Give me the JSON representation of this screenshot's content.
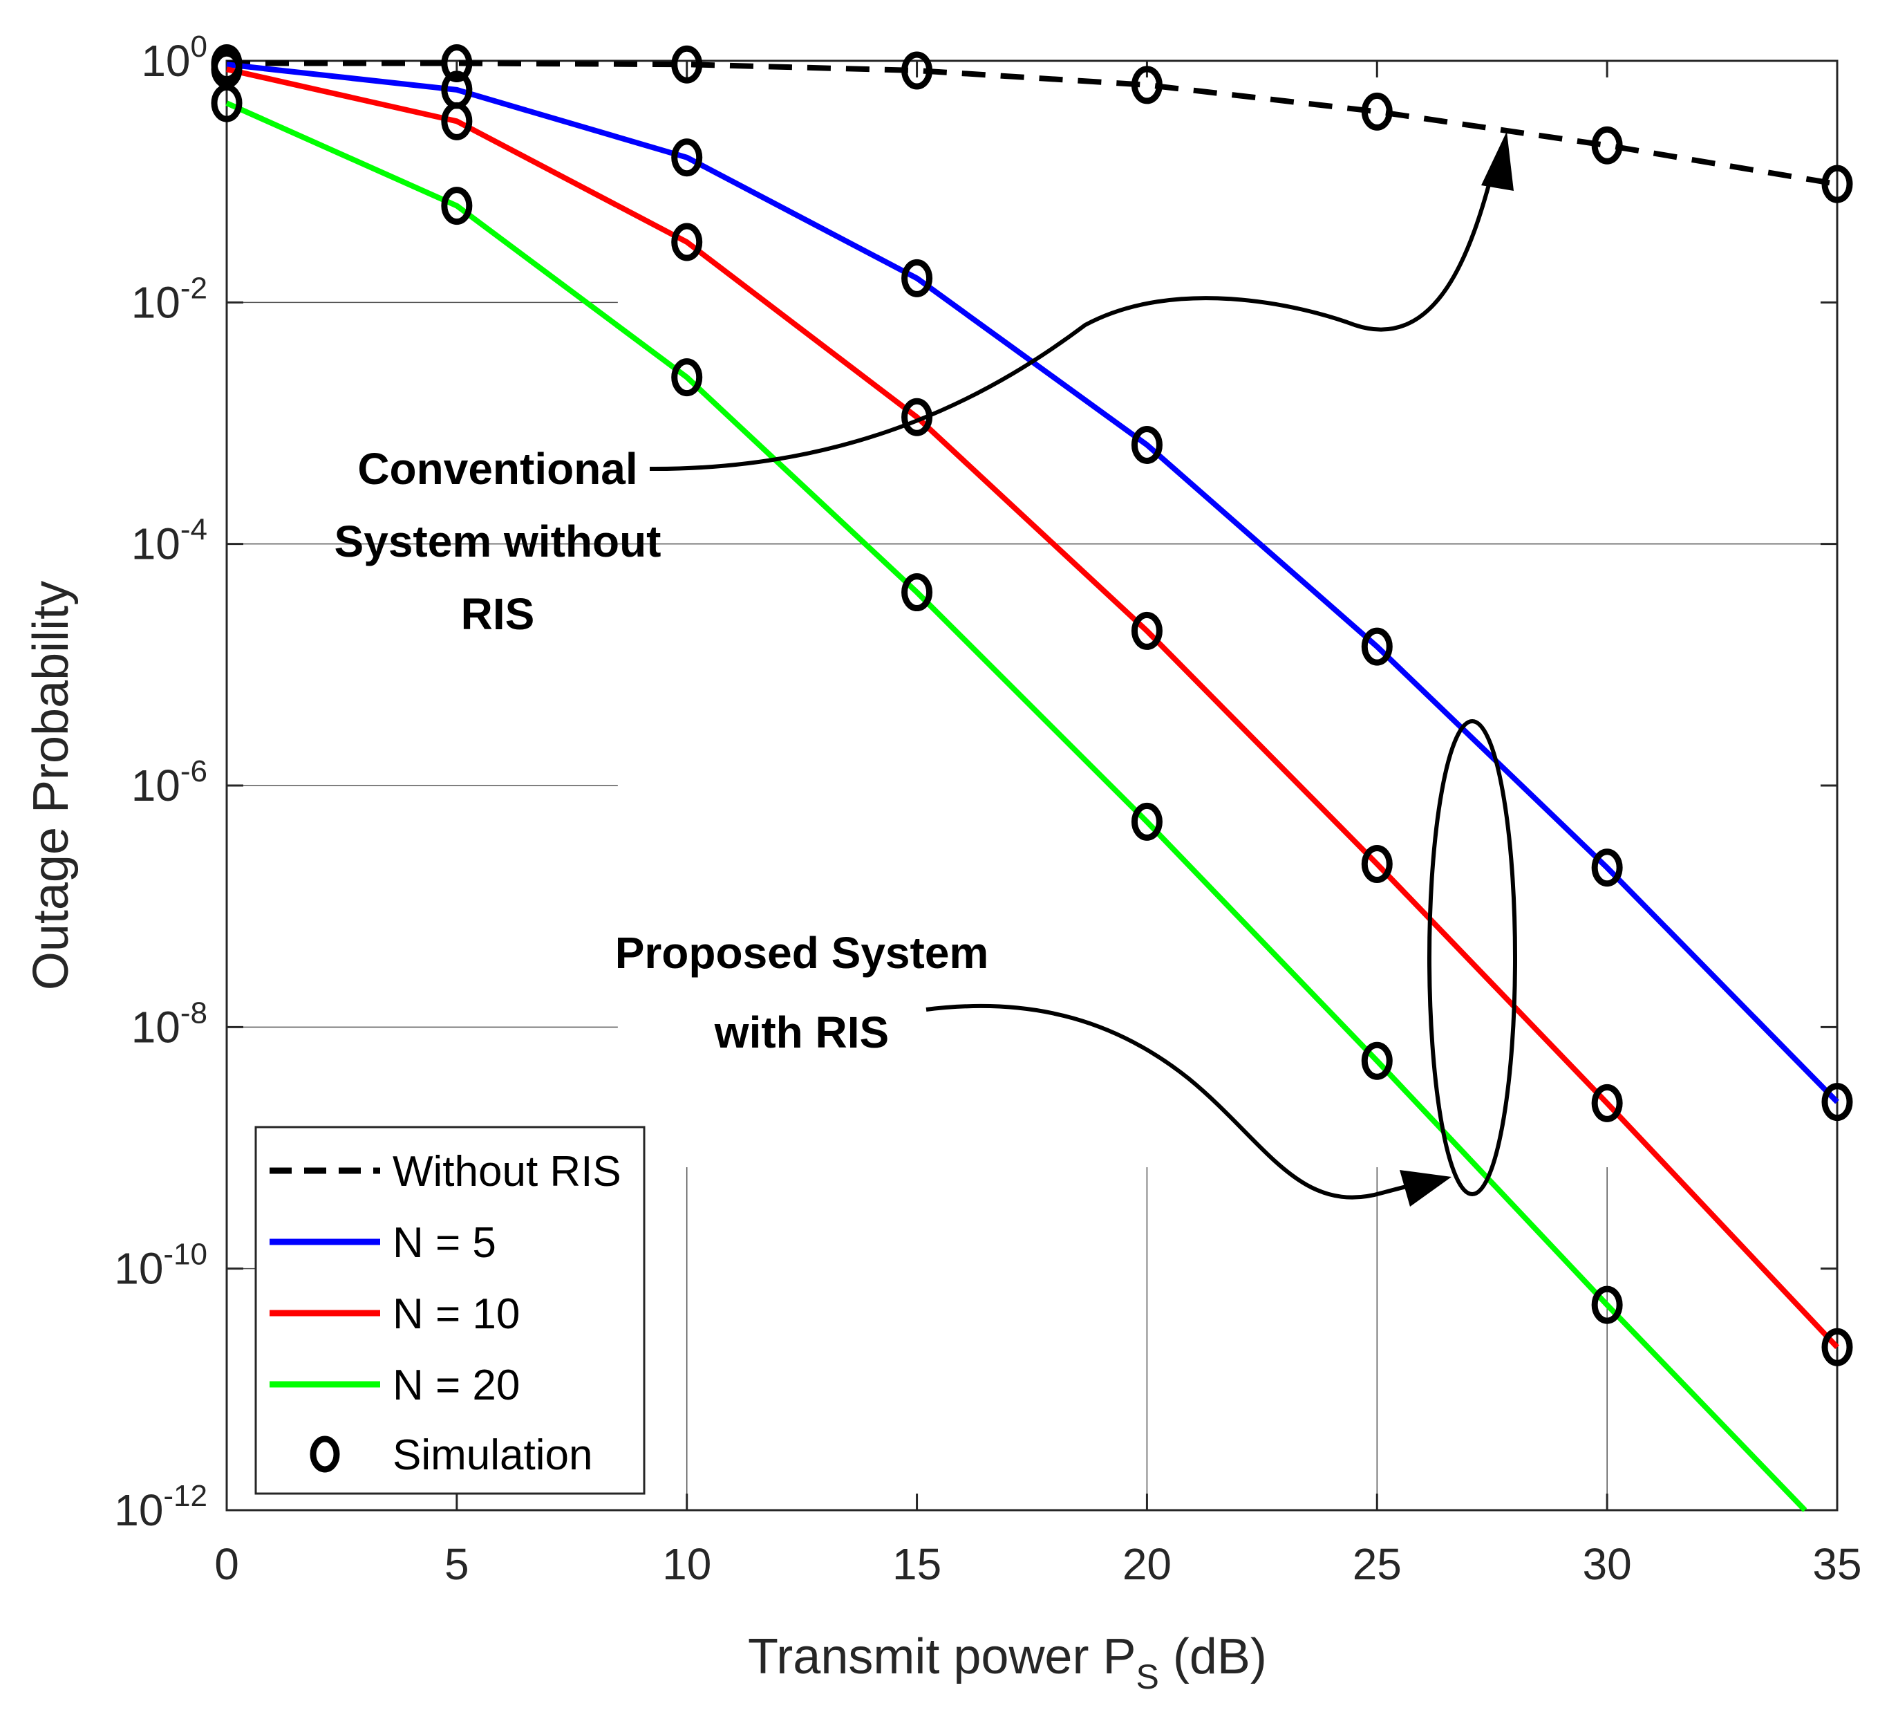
{
  "chart_data": {
    "type": "line",
    "yscale": "log",
    "title": "",
    "xlabel_main": "Transmit power P",
    "xlabel_sub": "S",
    "xlabel_unit": " (dB)",
    "ylabel": "Outage Probability",
    "xlim": [
      0,
      35
    ],
    "ylim_exponents": [
      -12,
      0
    ],
    "x_ticks": [
      "0",
      "5",
      "10",
      "15",
      "20",
      "25",
      "30",
      "35"
    ],
    "x_tick_values": [
      0,
      5,
      10,
      15,
      20,
      25,
      30,
      35
    ],
    "y_tick_exponents": [
      0,
      -2,
      -4,
      -6,
      -8,
      -10,
      -12
    ],
    "y_tick_base": "10",
    "y_tick_powers": [
      "0",
      "-2",
      "-4",
      "-6",
      "-8",
      "-10",
      "-12"
    ],
    "series": [
      {
        "name": "Without RIS",
        "color": "#000000",
        "dash": true,
        "x": [
          0,
          5,
          10,
          15,
          20,
          25,
          30,
          35
        ],
        "log10_y": [
          -0.02,
          -0.02,
          -0.03,
          -0.08,
          -0.2,
          -0.42,
          -0.7,
          -1.02
        ],
        "markers": [
          0,
          5,
          10,
          15,
          20,
          25,
          30,
          35
        ]
      },
      {
        "name": "N = 5",
        "color": "#0000ff",
        "dash": false,
        "x": [
          0,
          5,
          10,
          15,
          20,
          25,
          30,
          35
        ],
        "log10_y": [
          -0.03,
          -0.24,
          -0.8,
          -1.8,
          -3.18,
          -4.85,
          -6.68,
          -8.62
        ],
        "markers": [
          0,
          5,
          10,
          15,
          20,
          25,
          30,
          35
        ]
      },
      {
        "name": "N = 10",
        "color": "#ff0000",
        "dash": false,
        "x": [
          0,
          5,
          10,
          15,
          20,
          25,
          30,
          35
        ],
        "log10_y": [
          -0.07,
          -0.5,
          -1.5,
          -2.95,
          -4.72,
          -6.65,
          -8.63,
          -10.65
        ],
        "markers": [
          0,
          5,
          10,
          15,
          20,
          25,
          30,
          35
        ]
      },
      {
        "name": "N = 20",
        "color": "#00ff00",
        "dash": false,
        "x": [
          0,
          5,
          10,
          15,
          20,
          25,
          30,
          34.3
        ],
        "log10_y": [
          -0.35,
          -1.2,
          -2.62,
          -4.4,
          -6.3,
          -8.28,
          -10.3,
          -12.0
        ],
        "markers": [
          0,
          5,
          10,
          15,
          20,
          25,
          30
        ]
      }
    ],
    "legend": {
      "position": "bottom-left",
      "entries": [
        "Without RIS",
        "N = 5",
        "N = 10",
        "N = 20",
        "Simulation"
      ]
    },
    "annotations": {
      "conventional": [
        "Conventional",
        "System without",
        "RIS"
      ],
      "proposed": [
        "Proposed System",
        "with RIS"
      ]
    }
  }
}
